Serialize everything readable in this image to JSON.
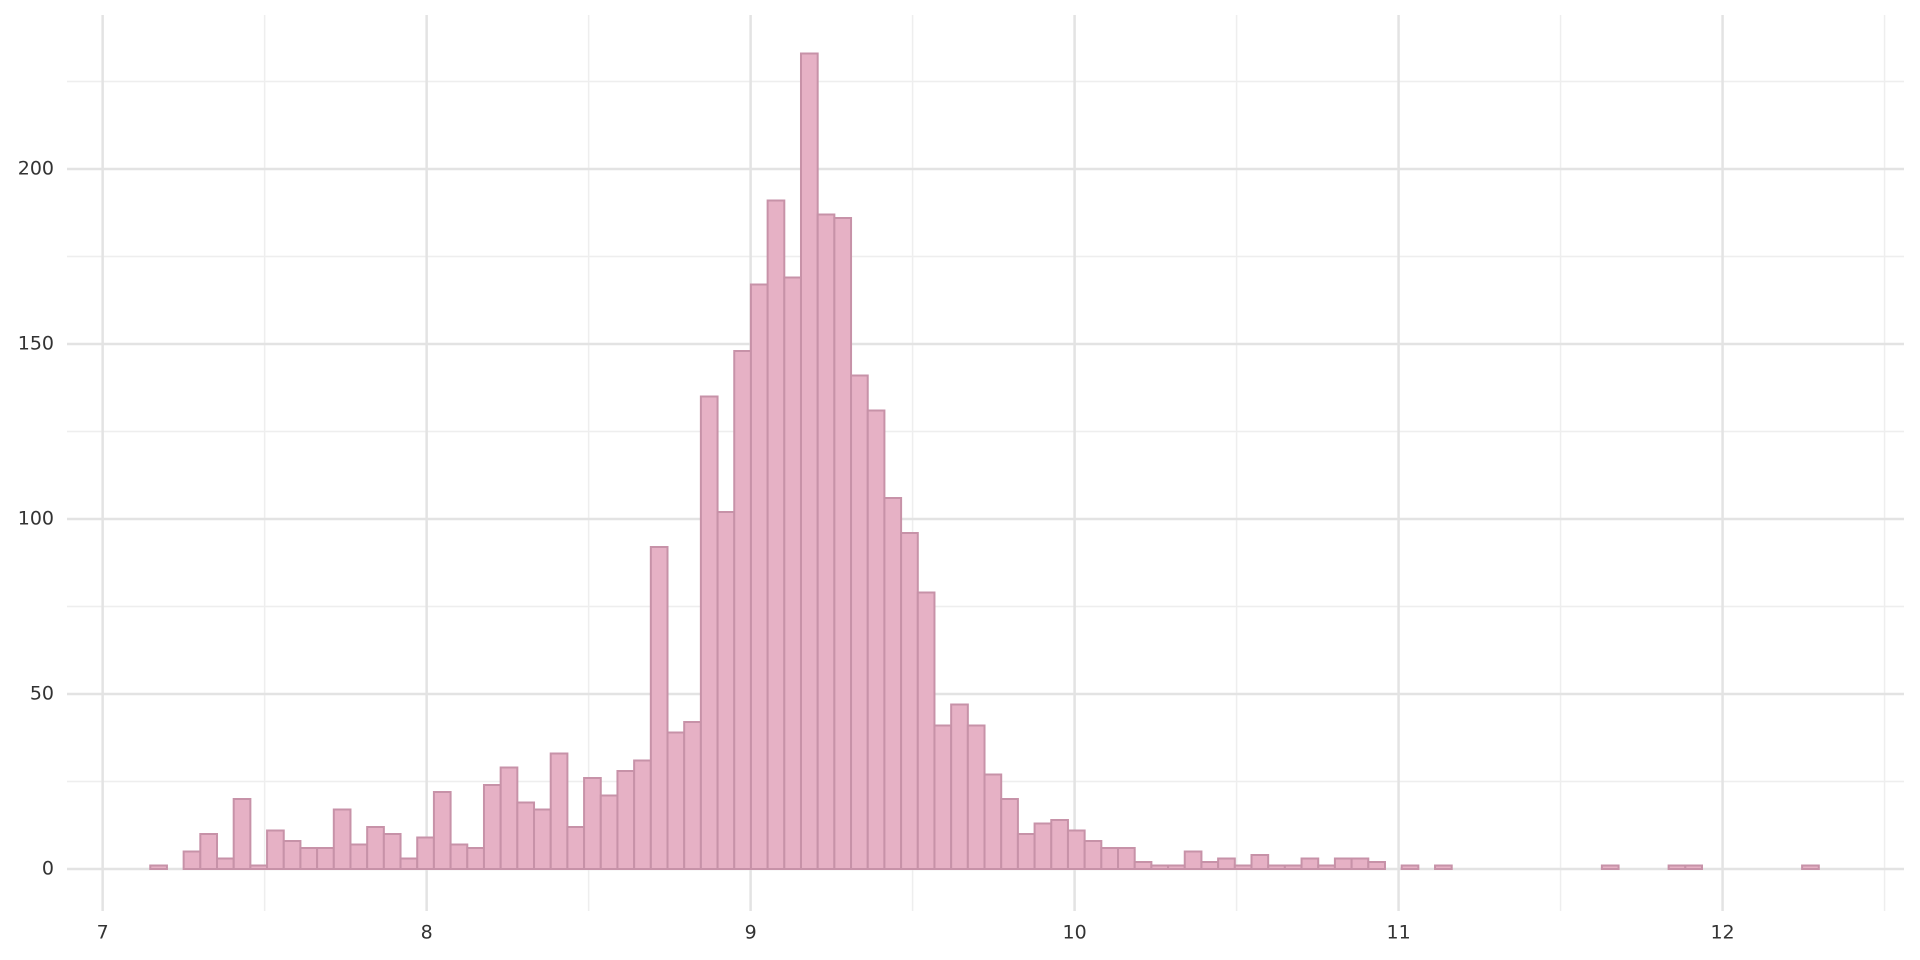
{
  "chart_data": {
    "type": "histogram",
    "bins": [
      7.147,
      7.1985,
      7.25,
      7.3015,
      7.353,
      7.4045,
      7.456,
      7.5075,
      7.559,
      7.6105,
      7.662,
      7.7135,
      7.765,
      7.8165,
      7.868,
      7.9195,
      7.971,
      8.0225,
      8.074,
      8.1255,
      8.177,
      8.2285,
      8.28,
      8.3315,
      8.383,
      8.4345,
      8.486,
      8.5375,
      8.589,
      8.6405,
      8.692,
      8.7435,
      8.795,
      8.8465,
      8.898,
      8.9495,
      9.001,
      9.0525,
      9.104,
      9.1555,
      9.207,
      9.2585,
      9.31,
      9.3615,
      9.413,
      9.4645,
      9.516,
      9.5675,
      9.619,
      9.6705,
      9.722,
      9.7735,
      9.825,
      9.8765,
      9.928,
      9.9795,
      10.031,
      10.0825,
      10.134,
      10.1855,
      10.237,
      10.2885,
      10.34,
      10.3915,
      10.443,
      10.4945,
      10.546,
      10.5975,
      10.649,
      10.7005,
      10.752,
      10.8035,
      10.855,
      10.9065,
      10.958,
      11.0095,
      11.061,
      11.1125,
      11.164,
      11.2155,
      11.267,
      11.3185,
      11.37,
      11.4215,
      11.473,
      11.5245,
      11.576,
      11.6275,
      11.679,
      11.7305,
      11.782,
      11.8335,
      11.885,
      11.9365,
      11.988,
      12.0395,
      12.091,
      12.1425,
      12.194,
      12.2455,
      12.297
    ],
    "values": [
      1,
      0,
      5,
      10,
      3,
      20,
      1,
      11,
      8,
      6,
      6,
      17,
      7,
      12,
      10,
      3,
      9,
      22,
      7,
      6,
      24,
      29,
      19,
      17,
      33,
      12,
      26,
      21,
      28,
      31,
      92,
      39,
      42,
      135,
      102,
      148,
      167,
      191,
      169,
      233,
      187,
      186,
      141,
      131,
      106,
      96,
      79,
      41,
      47,
      41,
      27,
      20,
      10,
      13,
      14,
      11,
      8,
      6,
      6,
      2,
      1,
      1,
      5,
      2,
      3,
      1,
      4,
      1,
      1,
      3,
      1,
      3,
      3,
      2,
      0,
      1,
      0,
      1,
      0,
      0,
      0,
      0,
      0,
      0,
      0,
      0,
      0,
      1,
      0,
      0,
      0,
      1,
      1,
      0,
      0,
      0,
      0,
      0,
      0,
      1
    ],
    "color": "#e6b1c5",
    "edge_color": "#c792a8",
    "xlim": [
      6.89,
      12.56
    ],
    "ylim": [
      -12,
      244
    ],
    "xticks": [
      7,
      8,
      9,
      10,
      11,
      12
    ],
    "yticks": [
      0,
      50,
      100,
      150,
      200
    ],
    "minor_xticks": [
      7.5,
      8.5,
      9.5,
      10.5,
      11.5,
      12.5
    ],
    "minor_yticks": [
      25,
      75,
      125,
      175,
      225
    ],
    "grid": true
  }
}
